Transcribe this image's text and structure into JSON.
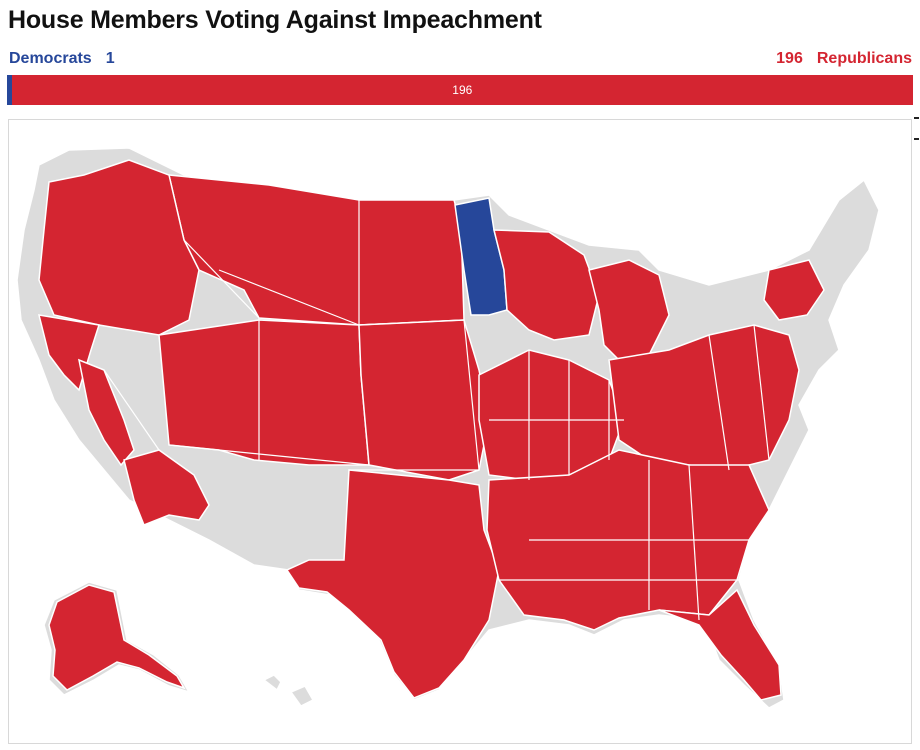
{
  "title": "House Members Voting Against Impeachment",
  "legend": {
    "left_label": "Democrats",
    "left_count": "1",
    "right_count": "196",
    "right_label": "Republicans"
  },
  "bar": {
    "democrats": {
      "value": 1,
      "label": "",
      "color": "#26479a"
    },
    "republicans": {
      "value": 196,
      "label": "196",
      "color": "#d42531"
    }
  },
  "colors": {
    "democrat": "#26479a",
    "republican": "#d42531",
    "other": "#dcdcdc",
    "boundary": "#ffffff"
  },
  "map": {
    "regions": [
      {
        "name": "northern-plains",
        "party": "republican"
      },
      {
        "name": "pacific-northwest",
        "party": "republican"
      },
      {
        "name": "california-north",
        "party": "republican"
      },
      {
        "name": "california-central-valley",
        "party": "republican"
      },
      {
        "name": "california-south",
        "party": "republican"
      },
      {
        "name": "mountain-west",
        "party": "republican"
      },
      {
        "name": "great-plains",
        "party": "republican"
      },
      {
        "name": "texas",
        "party": "republican"
      },
      {
        "name": "minnesota-north",
        "party": "democrat"
      },
      {
        "name": "upper-midwest",
        "party": "republican"
      },
      {
        "name": "michigan-north",
        "party": "republican"
      },
      {
        "name": "midwest-south",
        "party": "republican"
      },
      {
        "name": "appalachia",
        "party": "republican"
      },
      {
        "name": "southeast",
        "party": "republican"
      },
      {
        "name": "florida",
        "party": "republican"
      },
      {
        "name": "upstate-new-york",
        "party": "republican"
      },
      {
        "name": "alaska",
        "party": "republican"
      }
    ]
  }
}
